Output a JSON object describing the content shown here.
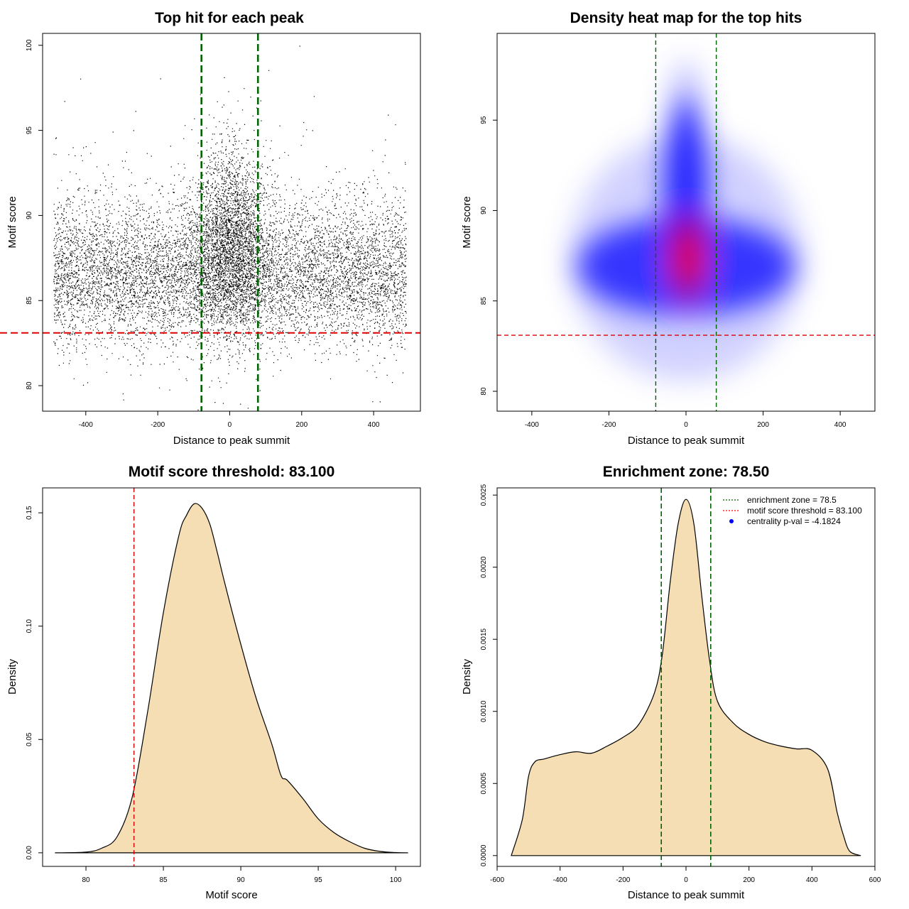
{
  "chart_data": [
    {
      "id": "scatter",
      "type": "scatter",
      "title": "Top hit for each peak",
      "xlabel": "Distance to peak summit",
      "ylabel": "Motif score",
      "xlim": [
        -520,
        530
      ],
      "ylim": [
        78.5,
        100.7
      ],
      "xticks": [
        -400,
        -200,
        0,
        200,
        400
      ],
      "yticks": [
        80,
        85,
        90,
        95,
        100
      ],
      "vlines": [
        -78.5,
        78.5
      ],
      "hline": 83.1,
      "point_region": {
        "x_range": [
          -490,
          490
        ],
        "background_score_center": 86.6,
        "central_score_center": 88.5,
        "central_half_width": 78.5
      },
      "grid": false
    },
    {
      "id": "heatmap",
      "type": "heatmap",
      "title": "Density heat map for the top hits",
      "xlabel": "Distance to peak summit",
      "ylabel": "Motif score",
      "xlim": [
        -490,
        490
      ],
      "ylim": [
        78.9,
        99.8
      ],
      "xticks": [
        -400,
        -200,
        0,
        200,
        400
      ],
      "yticks": [
        80,
        85,
        90,
        95
      ],
      "vlines": [
        -78.5,
        78.5
      ],
      "hline": 83.1,
      "hotspot": {
        "x": 5,
        "y": 87.4
      },
      "colors": {
        "low": "#ffffff",
        "mid": "#0000ff",
        "high": "#ff0000"
      },
      "grid": false
    },
    {
      "id": "score-density",
      "type": "area",
      "title": "Motif score threshold: 83.100",
      "xlabel": "Motif score",
      "ylabel": "Density",
      "xlim": [
        77.2,
        101.6
      ],
      "ylim": [
        -0.006,
        0.161
      ],
      "xticks": [
        80,
        85,
        90,
        95,
        100
      ],
      "yticks": [
        0.0,
        0.05,
        0.1,
        0.15
      ],
      "ytick_labels": [
        "0.00",
        "0.05",
        "0.10",
        "0.15"
      ],
      "vline": 83.1,
      "x": [
        78,
        80,
        81,
        82,
        83,
        84,
        85,
        86,
        86.5,
        87,
        87.5,
        88,
        88.5,
        89,
        90,
        91,
        92,
        92.6,
        93,
        94,
        95,
        96,
        97,
        98,
        99,
        100,
        100.8
      ],
      "y": [
        0,
        0.0003,
        0.002,
        0.007,
        0.025,
        0.063,
        0.106,
        0.14,
        0.149,
        0.154,
        0.152,
        0.145,
        0.132,
        0.118,
        0.092,
        0.068,
        0.048,
        0.034,
        0.032,
        0.024,
        0.015,
        0.009,
        0.005,
        0.002,
        0.0006,
        0.0001,
        0
      ],
      "fill": "#f5deb3",
      "grid": false
    },
    {
      "id": "distance-density",
      "type": "area",
      "title": "Enrichment zone: 78.50",
      "xlabel": "Distance to peak summit",
      "ylabel": "Density",
      "xlim": [
        -600,
        600
      ],
      "ylim": [
        -7.5e-05,
        0.00255
      ],
      "xticks": [
        -600,
        -400,
        -200,
        0,
        200,
        400,
        600
      ],
      "yticks": [
        0.0,
        0.0005,
        0.001,
        0.0015,
        0.002,
        0.0025
      ],
      "ytick_labels": [
        "0.0000",
        "0.0005",
        "0.0010",
        "0.0015",
        "0.0020",
        "0.0025"
      ],
      "vlines": [
        -78.5,
        78.5
      ],
      "x": [
        -555,
        -520,
        -500,
        -480,
        -450,
        -400,
        -350,
        -300,
        -250,
        -200,
        -150,
        -100,
        -75,
        -50,
        -25,
        0,
        25,
        50,
        75,
        100,
        150,
        200,
        250,
        300,
        350,
        400,
        450,
        480,
        500,
        520,
        555
      ],
      "y": [
        0,
        0.00025,
        0.00055,
        0.00065,
        0.00067,
        0.0007,
        0.00072,
        0.00071,
        0.00076,
        0.00082,
        0.00091,
        0.00113,
        0.0014,
        0.0019,
        0.0023,
        0.00247,
        0.0023,
        0.0018,
        0.00135,
        0.00107,
        0.00092,
        0.00084,
        0.00079,
        0.00076,
        0.00074,
        0.00073,
        0.0006,
        0.0003,
        0.00014,
        3e-05,
        0
      ],
      "fill": "#f5deb3",
      "legend": {
        "placement": "top-right",
        "entries": [
          {
            "label": "enrichment zone = 78.5",
            "style": "dotted",
            "color": "#006400"
          },
          {
            "label": "motif score threshold = 83.100",
            "style": "dotted",
            "color": "#ff0000"
          },
          {
            "label": "centrality p-val = -4.1824",
            "style": "point",
            "color": "#0000ff"
          }
        ]
      },
      "grid": false
    }
  ]
}
